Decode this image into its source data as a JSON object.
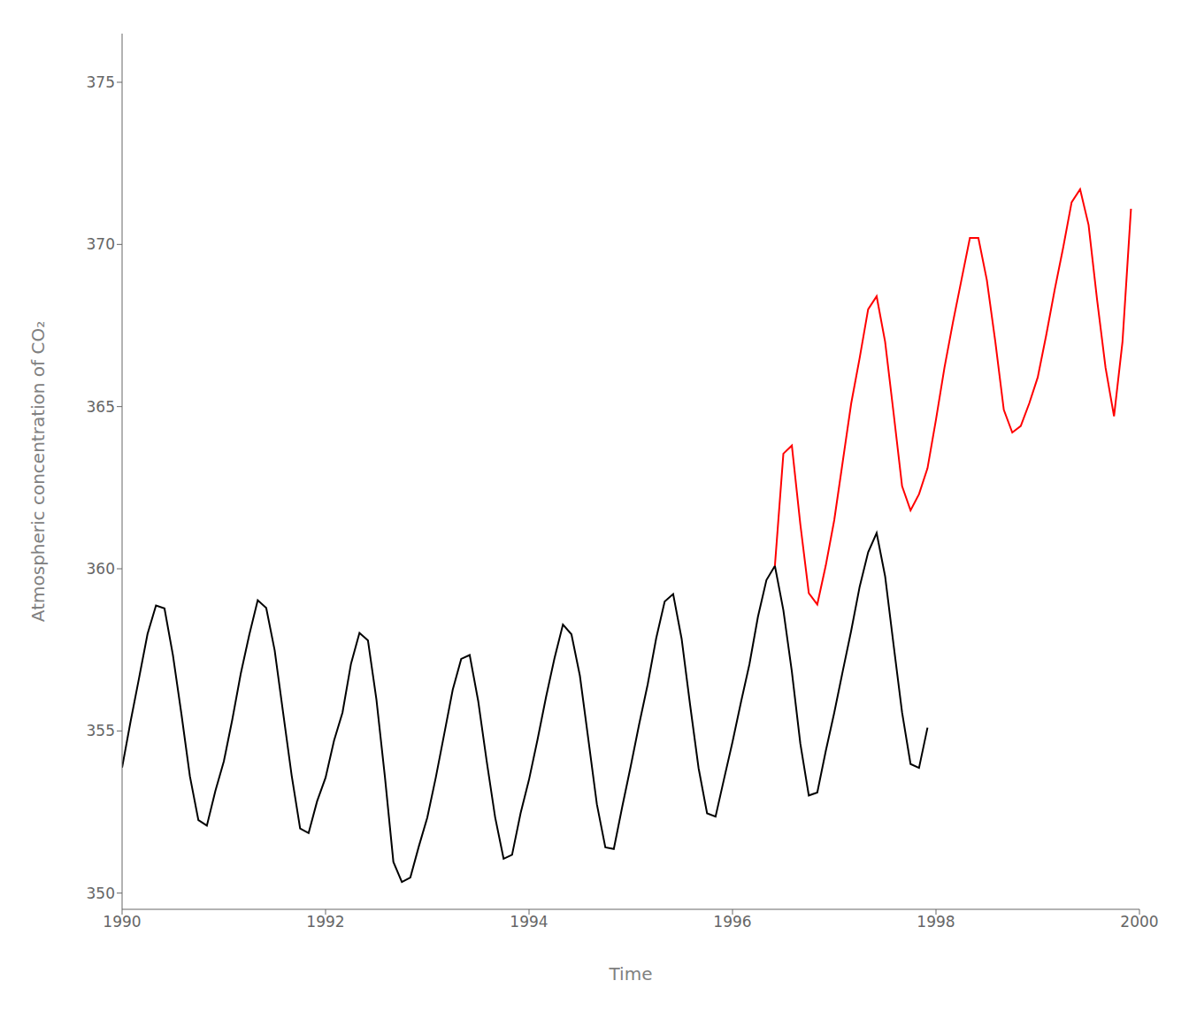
{
  "chart_data": {
    "type": "line",
    "xlabel": "Time",
    "ylabel": "Atmospheric concentration of CO₂",
    "xlim": [
      1990,
      2000
    ],
    "ylim": [
      349.5,
      376.5
    ],
    "xticks": [
      1990,
      1992,
      1994,
      1996,
      1998,
      2000
    ],
    "yticks": [
      350,
      355,
      360,
      365,
      370,
      375
    ],
    "grid": false,
    "series": [
      {
        "color": "#000000",
        "x": [
          1990.0,
          1990.0833,
          1990.1667,
          1990.25,
          1990.3333,
          1990.4167,
          1990.5,
          1990.5833,
          1990.6667,
          1990.75,
          1990.8333,
          1990.9167,
          1991.0,
          1991.0833,
          1991.1667,
          1991.25,
          1991.3333,
          1991.4167,
          1991.5,
          1991.5833,
          1991.6667,
          1991.75,
          1991.8333,
          1991.9167,
          1992.0,
          1992.0833,
          1992.1667,
          1992.25,
          1992.3333,
          1992.4167,
          1992.5,
          1992.5833,
          1992.6667,
          1992.75,
          1992.8333,
          1992.9167,
          1993.0,
          1993.0833,
          1993.1667,
          1993.25,
          1993.3333,
          1993.4167,
          1993.5,
          1993.5833,
          1993.6667,
          1993.75,
          1993.8333,
          1993.9167,
          1994.0,
          1994.0833,
          1994.1667,
          1994.25,
          1994.3333,
          1994.4167,
          1994.5,
          1994.5833,
          1994.6667,
          1994.75,
          1994.8333,
          1994.9167,
          1995.0,
          1995.0833,
          1995.1667,
          1995.25,
          1995.3333,
          1995.4167,
          1995.5,
          1995.5833,
          1995.6667,
          1995.75,
          1995.8333,
          1995.9167,
          1996.0,
          1996.0833,
          1996.1667,
          1996.25,
          1996.3333,
          1996.4167,
          1996.5,
          1996.5833,
          1996.6667,
          1996.75,
          1996.8333,
          1996.9167,
          1997.0,
          1997.0833,
          1997.1667,
          1997.25,
          1997.3333,
          1997.4167,
          1997.5,
          1997.5833,
          1997.6667,
          1997.75,
          1997.8333,
          1997.9167
        ],
        "values": [
          353.87,
          355.29,
          356.63,
          357.99,
          358.87,
          358.78,
          357.33,
          355.52,
          353.6,
          352.25,
          352.08,
          353.15,
          354.06,
          355.35,
          356.77,
          357.96,
          359.03,
          358.79,
          357.48,
          355.55,
          353.63,
          351.99,
          351.85,
          352.83,
          353.56,
          354.7,
          355.57,
          357.07,
          358.02,
          357.79,
          355.97,
          353.59,
          350.96,
          350.34,
          350.48,
          351.44,
          352.33,
          353.56,
          354.91,
          356.27,
          357.22,
          357.34,
          355.93,
          354.08,
          352.34,
          351.06,
          351.18,
          352.46,
          353.5,
          354.73,
          356.04,
          357.24,
          358.28,
          357.98,
          356.7,
          354.73,
          352.74,
          351.41,
          351.36,
          352.67,
          353.92,
          355.22,
          356.44,
          357.86,
          358.99,
          359.22,
          357.84,
          355.8,
          353.85,
          352.46,
          352.36,
          353.52,
          354.66,
          355.89,
          357.06,
          358.52,
          359.65,
          360.09,
          358.72,
          356.83,
          354.61,
          353.01,
          353.1,
          354.38,
          355.56,
          356.84,
          358.09,
          359.45,
          360.51,
          361.1,
          359.77,
          357.65,
          355.57,
          353.98,
          353.86,
          355.1
        ]
      },
      {
        "color": "#FF0000",
        "x": [
          1996.4167,
          1996.5,
          1996.5833,
          1996.6667,
          1996.75,
          1996.8333,
          1996.9167,
          1997.0,
          1997.0833,
          1997.1667,
          1997.25,
          1997.3333,
          1997.4167,
          1997.5,
          1997.5833,
          1997.6667,
          1997.75,
          1997.8333,
          1997.9167,
          1998.0,
          1998.0833,
          1998.1667,
          1998.25,
          1998.3333,
          1998.4167,
          1998.5,
          1998.5833,
          1998.6667,
          1998.75,
          1998.8333,
          1998.9167,
          1999.0,
          1999.0833,
          1999.1667,
          1999.25,
          1999.3333,
          1999.4167,
          1999.5,
          1999.5833,
          1999.6667,
          1999.75,
          1999.8333,
          1999.9167
        ],
        "values": [
          360.09,
          363.55,
          363.8,
          361.37,
          359.25,
          358.9,
          360.1,
          361.5,
          363.3,
          365.1,
          366.5,
          368.0,
          368.4,
          367.0,
          364.8,
          362.55,
          361.8,
          362.3,
          363.1,
          364.6,
          366.2,
          367.6,
          368.9,
          370.2,
          370.2,
          368.9,
          367.0,
          364.9,
          364.2,
          364.4,
          365.1,
          365.9,
          367.2,
          368.6,
          369.9,
          371.3,
          371.7,
          370.6,
          368.3,
          366.2,
          364.7,
          367.0,
          371.1
        ]
      }
    ]
  }
}
